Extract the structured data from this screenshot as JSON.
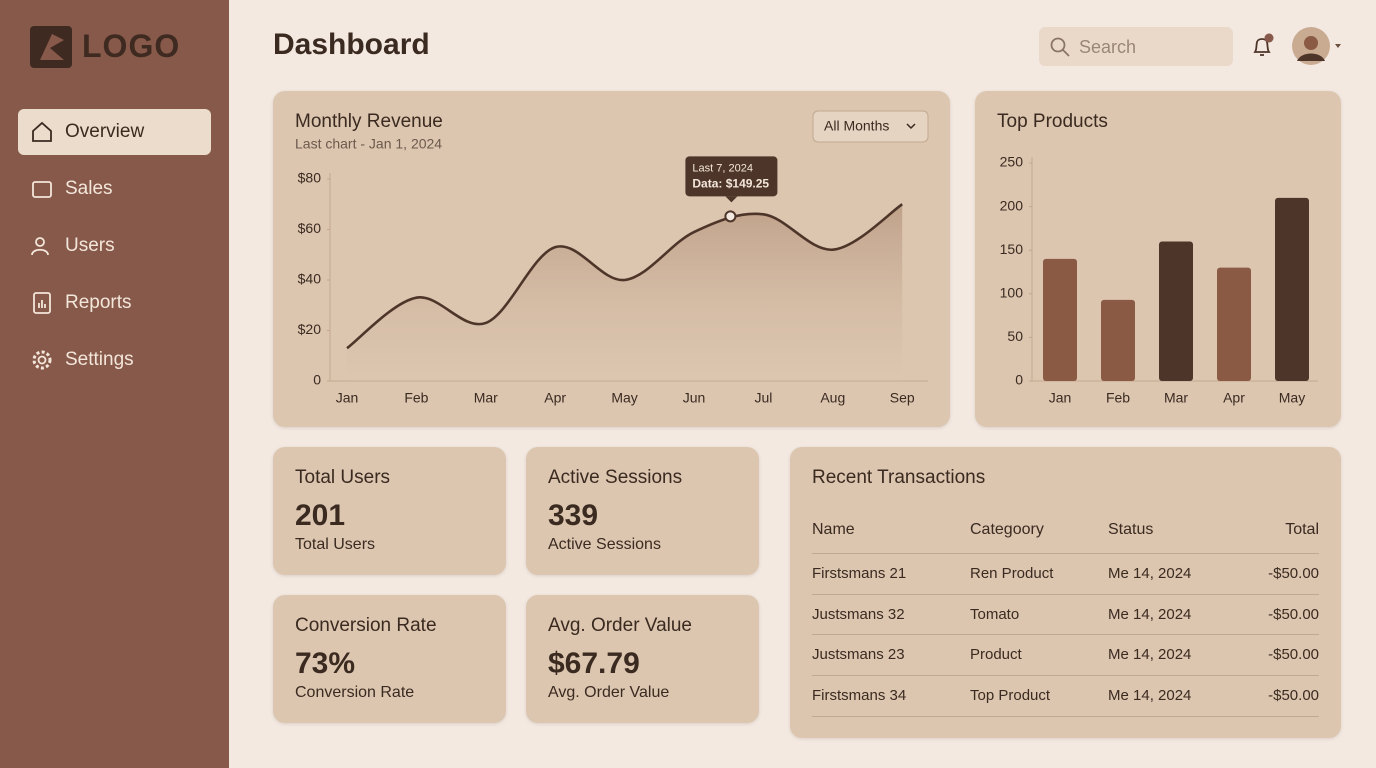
{
  "sidebar": {
    "logo": "LOGO",
    "nav": [
      "Overview",
      "Sales",
      "Users",
      "Reports",
      "Settings"
    ]
  },
  "header": {
    "title": "Dashboard",
    "search_placeholder": "Search"
  },
  "chart_data": [
    {
      "type": "line",
      "title": "Monthly Revenue",
      "subtitle": "Last chart - Jan 1, 2024",
      "filter": "All Months",
      "annotations": [
        "Last 7, 2024",
        "Data: $149.25"
      ],
      "categories": [
        "Jan",
        "Feb",
        "Mar",
        "Apr",
        "May",
        "Jun",
        "Jul",
        "Aug",
        "Sep"
      ],
      "values": [
        13,
        33,
        23,
        53,
        40,
        59,
        66,
        52,
        70
      ],
      "color": "#4e3529",
      "ylim": [
        0,
        80
      ],
      "yticks": [
        0,
        {
          "value": 20,
          "label": "$20"
        },
        {
          "value": 40,
          "label": "$40"
        },
        {
          "value": 60,
          "label": "$60"
        },
        {
          "value": 80,
          "label": "$80"
        }
      ]
    },
    {
      "type": "bar",
      "title": "Top Products",
      "categories": [
        "Jan",
        "Feb",
        "Mar",
        "Apr",
        "May"
      ],
      "values": [
        140,
        93,
        160,
        130,
        210
      ],
      "colors": [
        "#8a5a44",
        "#8a5a44",
        "#4e3529",
        "#8a5a44",
        "#4e3529"
      ],
      "ylim": [
        0,
        250
      ],
      "yticks": [
        0,
        50,
        100,
        150,
        200,
        250
      ]
    }
  ],
  "stats": [
    {
      "title": "Total Users",
      "value": "201",
      "label": "Total Users"
    },
    {
      "title": "Active Sessions",
      "value": "339",
      "label": "Active Sessions"
    },
    {
      "title": "Conversion Rate",
      "value": "73%",
      "label": "Conversion Rate"
    },
    {
      "title": "Avg. Order Value",
      "value": "$67.79",
      "label": "Avg. Order Value"
    }
  ],
  "transactions": {
    "title": "Recent Transactions",
    "columns": [
      "Name",
      "Categoory",
      "Status",
      "Total"
    ],
    "rows": [
      [
        "Firstsmans 21",
        "Ren Product",
        "Me 14, 2024",
        "-$50.00"
      ],
      [
        "Justsmans 32",
        "Tomato",
        "Me 14, 2024",
        "-$50.00"
      ],
      [
        "Justsmans 23",
        "Product",
        "Me 14, 2024",
        "-$50.00"
      ],
      [
        "Firstsmans 34",
        "Top Product",
        "Me 14, 2024",
        "-$50.00"
      ]
    ]
  }
}
